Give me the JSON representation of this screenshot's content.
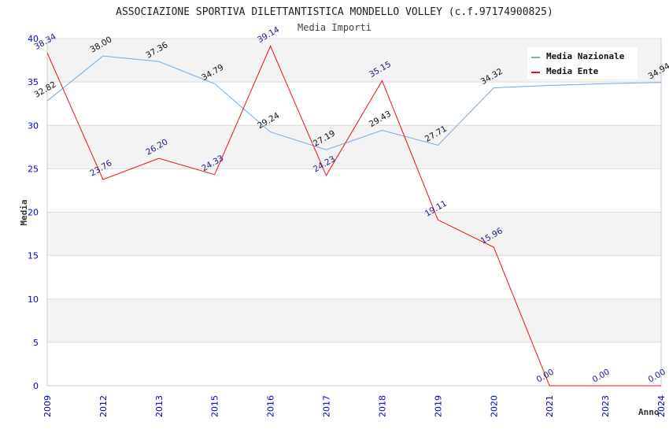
{
  "chart_data": {
    "type": "line",
    "title": "ASSOCIAZIONE SPORTIVA DILETTANTISTICA MONDELLO VOLLEY (c.f.97174900825)",
    "subtitle": "Media Importi",
    "xlabel": "Anno",
    "ylabel": "Media",
    "ylim": [
      0,
      40
    ],
    "yticks": [
      0,
      5,
      10,
      15,
      20,
      25,
      30,
      35,
      40
    ],
    "grid": true,
    "legend_position": "top-right",
    "categories": [
      "2009",
      "2012",
      "2013",
      "2015",
      "2016",
      "2017",
      "2018",
      "2019",
      "2020",
      "2021",
      "2023",
      "2024"
    ],
    "series": [
      {
        "name": "Media Nazionale",
        "color": "#6aaee8",
        "values": [
          32.82,
          38.0,
          37.36,
          34.79,
          29.24,
          27.19,
          29.43,
          27.71,
          34.32,
          34.6,
          34.8,
          34.94
        ],
        "labels": [
          "32.82",
          "38.00",
          "37.36",
          "34.79",
          "29.24",
          "27.19",
          "29.43",
          "27.71",
          "34.32",
          "",
          "",
          "34.94"
        ]
      },
      {
        "name": "Media Ente",
        "color": "#ee1111",
        "values": [
          38.34,
          23.76,
          26.2,
          24.33,
          39.14,
          24.23,
          35.15,
          19.11,
          15.96,
          0.0,
          0.0,
          0.0
        ],
        "labels": [
          "38.34",
          "23.76",
          "26.20",
          "24.33",
          "39.14",
          "24.23",
          "35.15",
          "19.11",
          "15.96",
          "0.00",
          "0.00",
          "0.00"
        ]
      }
    ]
  }
}
